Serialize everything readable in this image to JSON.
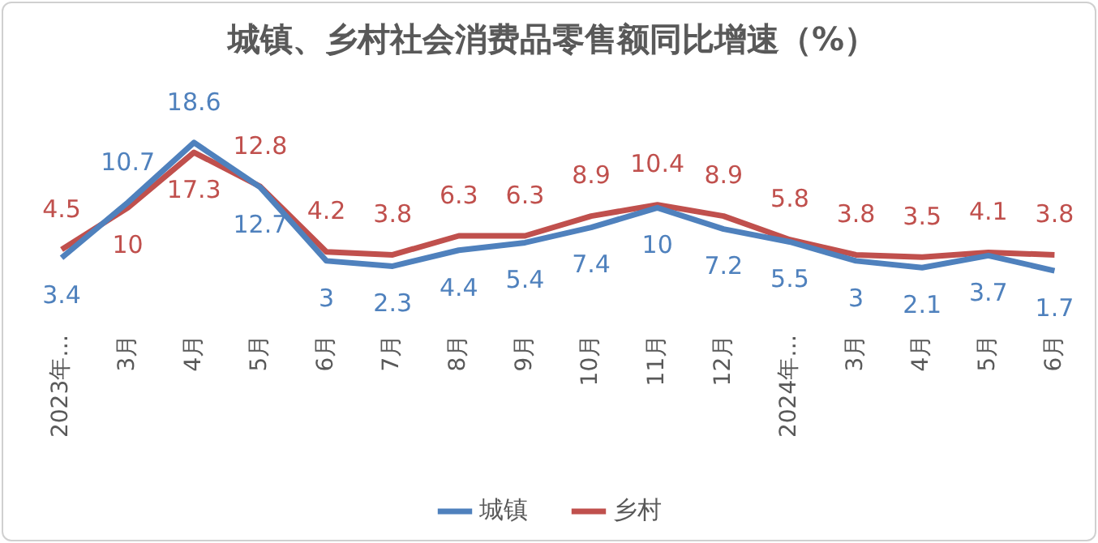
{
  "chart_data": {
    "type": "line",
    "title": "城镇、乡村社会消费品零售额同比增速（%）",
    "categories": [
      "2023年…",
      "3月",
      "4月",
      "5月",
      "6月",
      "7月",
      "8月",
      "9月",
      "10月",
      "11月",
      "12月",
      "2024年…",
      "3月",
      "4月",
      "5月",
      "6月"
    ],
    "series": [
      {
        "name": "城镇",
        "color": "#4f81bd",
        "values": [
          3.4,
          10.7,
          18.6,
          12.7,
          3,
          2.3,
          4.4,
          5.4,
          7.4,
          10,
          7.2,
          5.5,
          3,
          2.1,
          3.7,
          1.7
        ]
      },
      {
        "name": "乡村",
        "color": "#c0504d",
        "values": [
          4.5,
          10,
          17.3,
          12.8,
          4.2,
          3.8,
          6.3,
          6.3,
          8.9,
          10.4,
          8.9,
          5.8,
          3.8,
          3.5,
          4.1,
          3.8
        ]
      }
    ],
    "relative": false,
    "data_labels": true,
    "legend": "bottom",
    "grid": false,
    "marker": "none",
    "line_style": "solid"
  }
}
